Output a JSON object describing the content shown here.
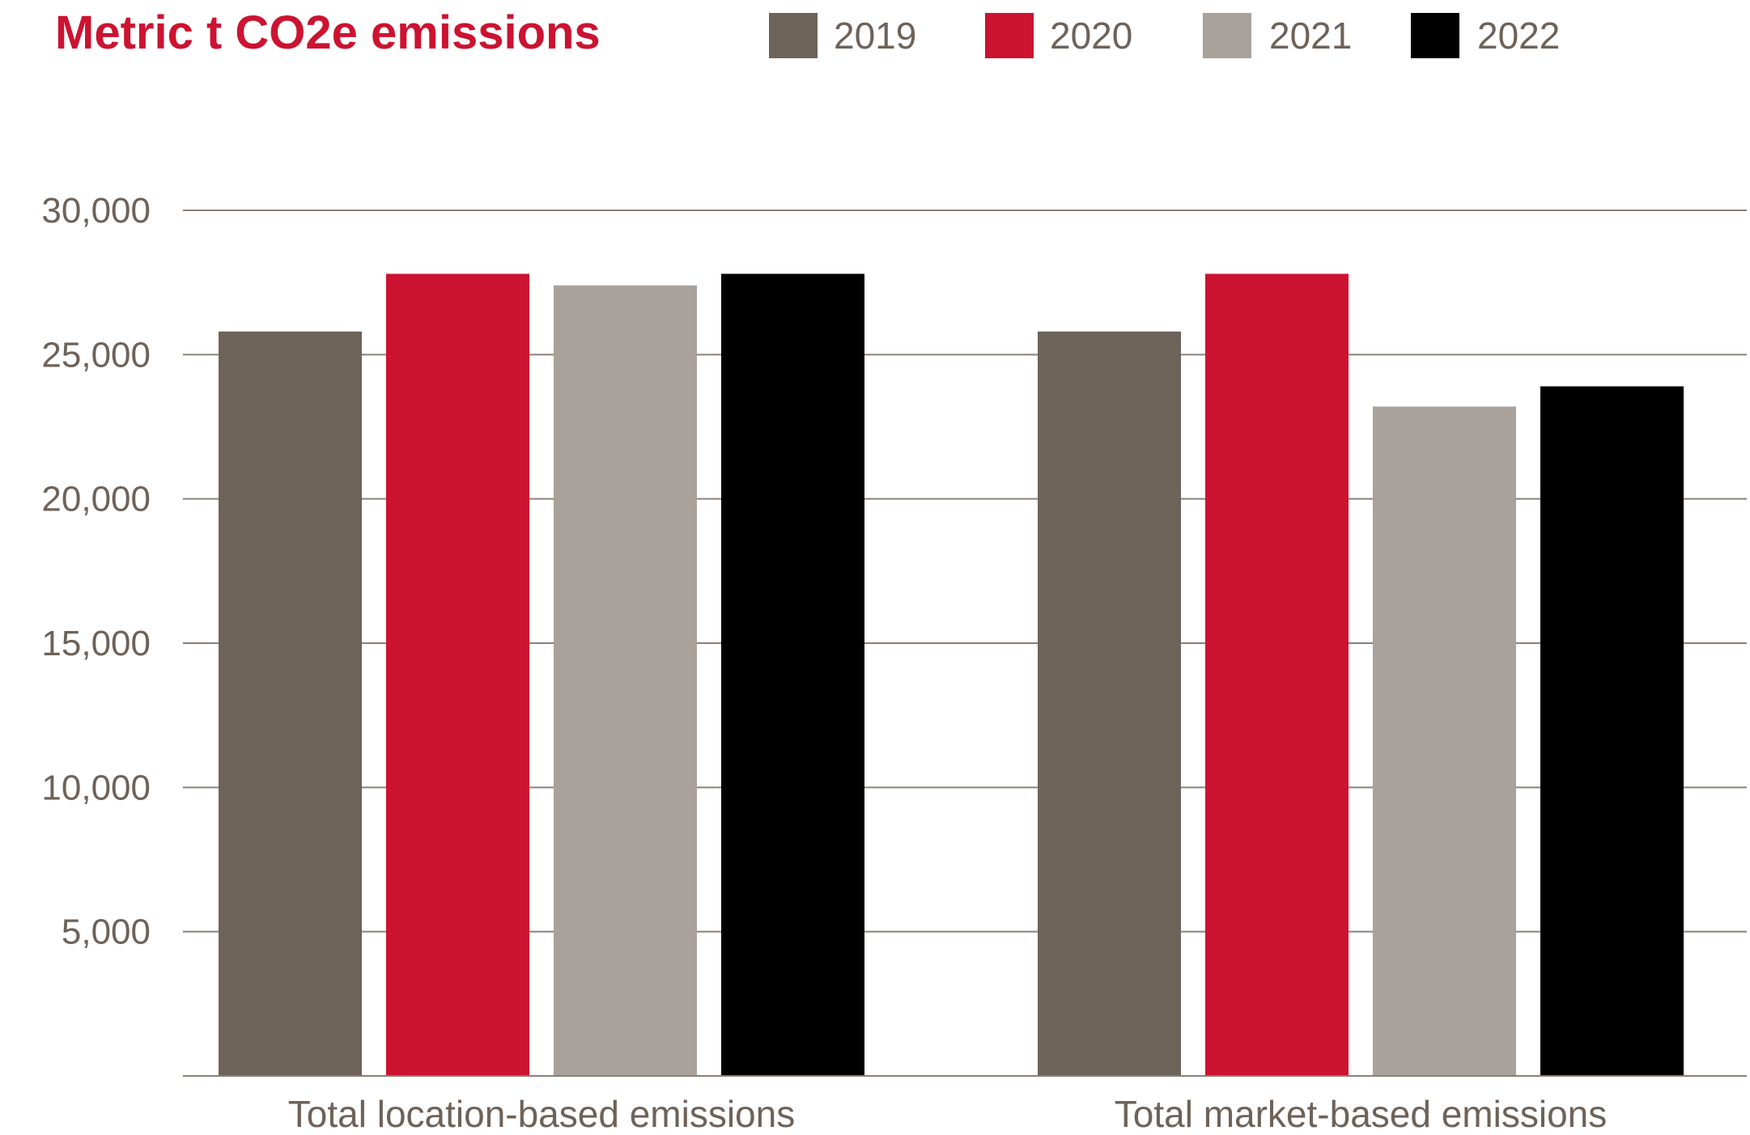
{
  "chart_data": {
    "type": "bar",
    "title": "Metric t CO2e emissions",
    "xlabel": "",
    "ylabel": "",
    "categories": [
      "Total location-based emissions",
      "Total market-based emissions"
    ],
    "series": [
      {
        "name": "2019",
        "values": [
          25800,
          25800
        ]
      },
      {
        "name": "2020",
        "values": [
          27800,
          27800
        ]
      },
      {
        "name": "2021",
        "values": [
          27400,
          23200
        ]
      },
      {
        "name": "2022",
        "values": [
          27800,
          23900
        ]
      }
    ],
    "yticks": [
      {
        "value": 5000,
        "label": "5,000"
      },
      {
        "value": 10000,
        "label": "10,000"
      },
      {
        "value": 15000,
        "label": "15,000"
      },
      {
        "value": 20000,
        "label": "20,000"
      },
      {
        "value": 25000,
        "label": "25,000"
      },
      {
        "value": 30000,
        "label": "30,000"
      }
    ],
    "ylim": [
      0,
      30000
    ],
    "grid": true,
    "legend_position": "top",
    "colors": {
      "title": "#CC1331",
      "axis_text": "#6E6259",
      "grid": "#8A8078",
      "series": [
        "#6E6359",
        "#CC1331",
        "#A9A19C",
        "#000000"
      ]
    }
  }
}
